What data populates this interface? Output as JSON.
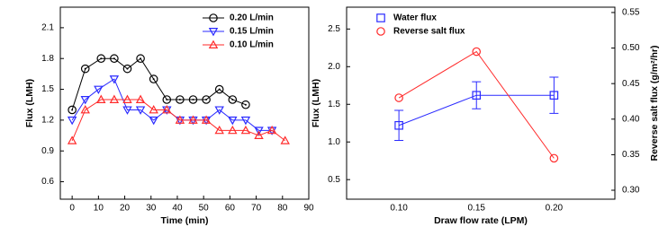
{
  "chart_data": [
    {
      "type": "line",
      "xlabel": "Time (min)",
      "ylabel": "Flux (LMH)",
      "xlim": [
        -4.5,
        90
      ],
      "xticks": [
        0,
        10,
        20,
        30,
        40,
        50,
        60,
        70,
        80,
        90
      ],
      "ylim": [
        0.43,
        2.3
      ],
      "yticks": [
        0.6,
        0.9,
        1.2,
        1.5,
        1.8,
        2.1
      ],
      "legend": "upper-right",
      "series": [
        {
          "name": "0.20 L/min",
          "color": "#000000",
          "marker": "circle",
          "x": [
            0,
            5,
            11,
            16,
            21,
            26,
            31,
            36,
            41,
            46,
            51,
            56,
            61,
            66
          ],
          "values": [
            1.3,
            1.7,
            1.8,
            1.8,
            1.7,
            1.8,
            1.6,
            1.4,
            1.4,
            1.4,
            1.4,
            1.5,
            1.4,
            1.35
          ]
        },
        {
          "name": "0.15 L/min",
          "color": "#2a2aff",
          "marker": "triangle-down",
          "x": [
            0,
            5,
            10,
            16,
            21,
            26,
            31,
            36,
            41,
            46,
            51,
            56,
            61,
            66,
            71,
            76
          ],
          "values": [
            1.2,
            1.4,
            1.5,
            1.6,
            1.3,
            1.3,
            1.2,
            1.3,
            1.2,
            1.2,
            1.2,
            1.3,
            1.2,
            1.2,
            1.1,
            1.1
          ]
        },
        {
          "name": "0.10 L/min",
          "color": "#ff2a2a",
          "marker": "triangle-up",
          "x": [
            0,
            5,
            11,
            16,
            21,
            26,
            31,
            36,
            41,
            46,
            51,
            56,
            61,
            66,
            71,
            76,
            81
          ],
          "values": [
            1.0,
            1.3,
            1.4,
            1.4,
            1.4,
            1.4,
            1.3,
            1.3,
            1.2,
            1.2,
            1.2,
            1.1,
            1.1,
            1.1,
            1.05,
            1.1,
            1.0
          ]
        }
      ]
    },
    {
      "type": "line",
      "xlabel": "Draw flow rate (LPM)",
      "ylabel": "Flux (LMH)",
      "y2label": "Reverse salt flux (g/m²/hr)",
      "categories": [
        "0.10",
        "0.15",
        "0.20"
      ],
      "ylim": [
        0.24,
        2.79
      ],
      "yticks": [
        0.5,
        {
          "value": 1,
          "label": "1.0"
        },
        1.5,
        {
          "value": 2,
          "label": "2.0"
        },
        2.5
      ],
      "y2lim": [
        0.2874,
        0.5575
      ],
      "y2ticks": [
        {
          "value": 0.3,
          "label": "0.30"
        },
        {
          "value": 0.35,
          "label": "0.35"
        },
        {
          "value": 0.4,
          "label": "0.40"
        },
        {
          "value": 0.45,
          "label": "0.45"
        },
        {
          "value": 0.5,
          "label": "0.50"
        },
        {
          "value": 0.55,
          "label": "0.55"
        }
      ],
      "legend": "upper-left",
      "series": [
        {
          "name": "Water flux",
          "color": "#2a2aff",
          "marker": "square",
          "values": [
            1.22,
            1.62,
            1.62
          ],
          "errors": [
            0.2,
            0.18,
            0.24
          ]
        },
        {
          "name": "Reverse salt flux",
          "color": "#ff2a2a",
          "marker": "circle",
          "axis": "y2",
          "values": [
            0.43,
            0.495,
            0.345
          ]
        }
      ]
    }
  ]
}
